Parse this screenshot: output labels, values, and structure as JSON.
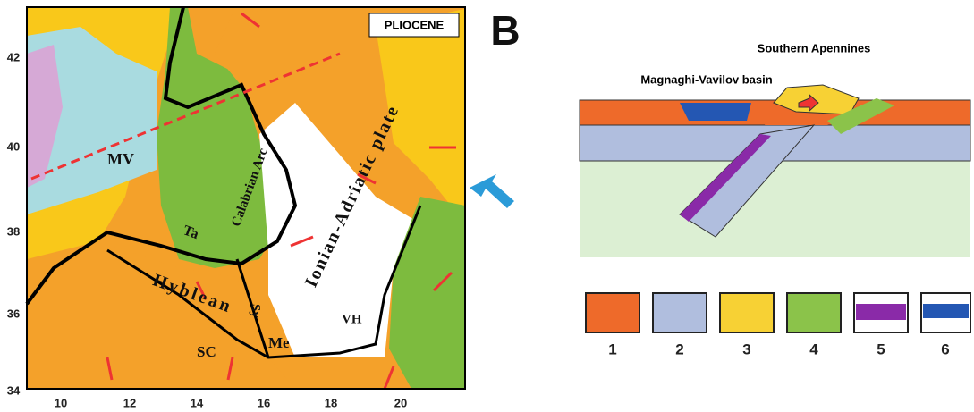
{
  "panel_a": {
    "title": "PLIOCENE",
    "labels": {
      "mv": "MV",
      "ta": "Ta",
      "arc": "Calabrian Arc",
      "hyblean": "Hyblean",
      "sc": "SC",
      "sy": "Sy",
      "me": "Me",
      "plate": "Ionian-Adriatic plate",
      "vh": "VH"
    },
    "lat_labels": [
      "42",
      "40",
      "38",
      "36",
      "34"
    ],
    "lon_labels": [
      "10",
      "12",
      "14",
      "16",
      "18",
      "20"
    ]
  },
  "panel_b": {
    "letter": "B",
    "southern_apennines": "Southern Apennines",
    "basin": "Magnaghi-Vavilov basin",
    "legend": [
      "1",
      "2",
      "3",
      "4",
      "5",
      "6"
    ]
  }
}
